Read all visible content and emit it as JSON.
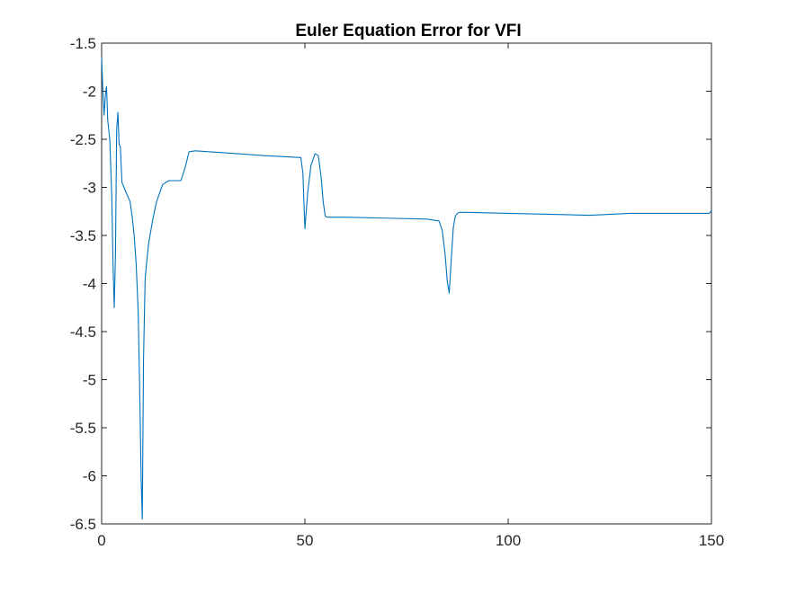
{
  "chart_data": {
    "type": "line",
    "title": "Euler Equation Error for VFI",
    "xlabel": "",
    "ylabel": "",
    "xlim": [
      0,
      150
    ],
    "ylim": [
      -6.5,
      -1.5
    ],
    "grid": false,
    "x_ticks": [
      0,
      50,
      100,
      150
    ],
    "x_tick_labels": [
      "0",
      "50",
      "100",
      "150"
    ],
    "y_ticks": [
      -1.5,
      -2,
      -2.5,
      -3,
      -3.5,
      -4,
      -4.5,
      -5,
      -5.5,
      -6,
      -6.5
    ],
    "y_tick_labels": [
      "-1.5",
      "-2",
      "-2.5",
      "-3",
      "-3.5",
      "-4",
      "-4.5",
      "-5",
      "-5.5",
      "-6",
      "-6.5"
    ],
    "series": [
      {
        "color": "#0072BD",
        "x": [
          0,
          0.3,
          0.6,
          0.9,
          1.2,
          1.5,
          2,
          2.5,
          2.8,
          3.1,
          3.4,
          3.7,
          4,
          4.3,
          4.6,
          5,
          5.5,
          6,
          7,
          7.5,
          8,
          8.5,
          9,
          9.4,
          9.7,
          10,
          10.3,
          10.7,
          11.5,
          12.5,
          13.5,
          15,
          16.5,
          18,
          19.5,
          20.5,
          21.5,
          23,
          30,
          40,
          49,
          49.5,
          50,
          50.7,
          51.5,
          52.5,
          53.3,
          54,
          54.5,
          55,
          55.5,
          60,
          70,
          80,
          83,
          83.8,
          84.5,
          85,
          85.5,
          86,
          86.5,
          87,
          87.5,
          88,
          90,
          100,
          110,
          120,
          130,
          140,
          148,
          149.5,
          150
        ],
        "y": [
          -1.65,
          -2.0,
          -2.25,
          -2.05,
          -1.95,
          -2.3,
          -2.5,
          -3.1,
          -3.8,
          -4.25,
          -3.7,
          -2.4,
          -2.22,
          -2.55,
          -2.58,
          -2.95,
          -3.0,
          -3.05,
          -3.15,
          -3.3,
          -3.5,
          -3.8,
          -4.3,
          -5.2,
          -6.0,
          -6.45,
          -4.8,
          -3.95,
          -3.6,
          -3.35,
          -3.15,
          -2.97,
          -2.93,
          -2.93,
          -2.93,
          -2.8,
          -2.63,
          -2.62,
          -2.64,
          -2.67,
          -2.69,
          -2.85,
          -3.43,
          -3.05,
          -2.77,
          -2.65,
          -2.67,
          -2.9,
          -3.15,
          -3.3,
          -3.31,
          -3.31,
          -3.32,
          -3.33,
          -3.35,
          -3.45,
          -3.7,
          -3.97,
          -4.1,
          -3.75,
          -3.42,
          -3.3,
          -3.27,
          -3.26,
          -3.26,
          -3.27,
          -3.28,
          -3.29,
          -3.27,
          -3.27,
          -3.27,
          -3.27,
          -3.24
        ]
      }
    ]
  }
}
